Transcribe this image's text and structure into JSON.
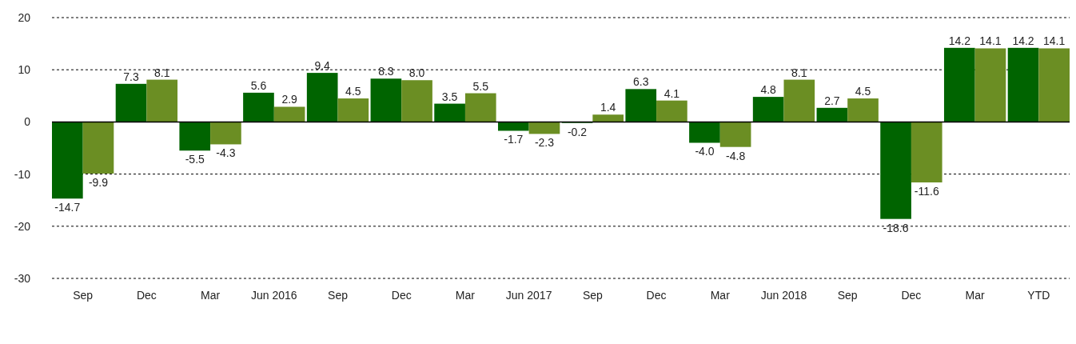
{
  "chart_data": {
    "type": "bar",
    "categories": [
      "Sep",
      "Dec",
      "Mar",
      "Jun 2016",
      "Sep",
      "Dec",
      "Mar",
      "Jun 2017",
      "Sep",
      "Dec",
      "Mar",
      "Jun 2018",
      "Sep",
      "Dec",
      "Mar",
      "YTD"
    ],
    "series": [
      {
        "color": "#006400",
        "values": [
          -14.7,
          7.3,
          -5.5,
          5.6,
          9.4,
          8.3,
          3.5,
          -1.7,
          -0.2,
          6.3,
          -4.0,
          4.8,
          2.7,
          -18.6,
          14.2,
          14.2
        ],
        "value_labels": [
          "-14.7",
          "7.3",
          "-5.5",
          "5.6",
          "9.4",
          "8.3",
          "3.5",
          "-1.7",
          "-0.2",
          "6.3",
          "-4.0",
          "4.8",
          "2.7",
          "-18.6",
          "14.2",
          "14.2"
        ]
      },
      {
        "color": "#6b8e23",
        "values": [
          -9.9,
          8.1,
          -4.3,
          2.9,
          4.5,
          8.0,
          5.5,
          -2.3,
          1.4,
          4.1,
          -4.8,
          8.1,
          4.5,
          -11.6,
          14.1,
          14.1
        ],
        "value_labels": [
          "-9.9",
          "8.1",
          "-4.3",
          "2.9",
          "4.5",
          "8.0",
          "5.5",
          "-2.3",
          "1.4",
          "4.1",
          "-4.8",
          "8.1",
          "4.5",
          "-11.6",
          "14.1",
          "14.1"
        ]
      }
    ],
    "ylim": [
      -30,
      20
    ],
    "yticks": [
      -30,
      -20,
      -10,
      0,
      10,
      20
    ],
    "grid": "y"
  }
}
